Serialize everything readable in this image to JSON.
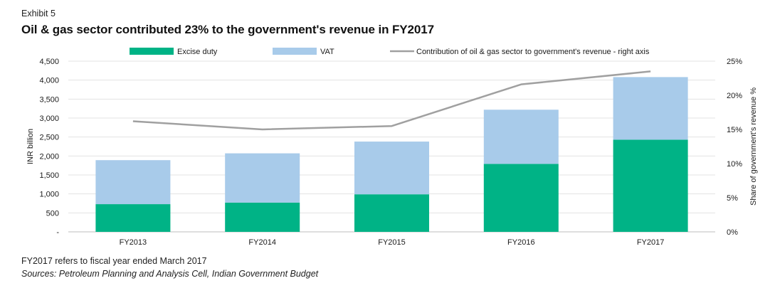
{
  "header": {
    "exhibit": "Exhibit 5",
    "title": "Oil & gas sector contributed 23% to the government's revenue in FY2017"
  },
  "footer": {
    "note": "FY2017 refers to fiscal year ended March 2017",
    "source": "Sources: Petroleum Planning and Analysis Cell, Indian Government Budget"
  },
  "chart_data": {
    "type": "bar",
    "stacked": true,
    "categories": [
      "FY2013",
      "FY2014",
      "FY2015",
      "FY2016",
      "FY2017"
    ],
    "series": [
      {
        "name": "Excise duty",
        "kind": "bar",
        "axis": "left",
        "color": "#00b386",
        "values": [
          730,
          770,
          990,
          1790,
          2430
        ]
      },
      {
        "name": "VAT",
        "kind": "bar",
        "axis": "left",
        "color": "#a8cbea",
        "values": [
          1160,
          1300,
          1390,
          1430,
          1650
        ]
      },
      {
        "name": "Contribution of oil & gas sector to government's revenue - right axis",
        "kind": "line",
        "axis": "right",
        "color": "#a0a0a0",
        "values": [
          16.2,
          15.0,
          15.5,
          21.6,
          23.5
        ]
      }
    ],
    "ylabel": "INR billion",
    "y2label": "Share of government's revenue %",
    "ylim": [
      0,
      4500
    ],
    "y2lim": [
      0,
      25
    ],
    "yticks": [
      "-",
      "500",
      "1,000",
      "1,500",
      "2,000",
      "2,500",
      "3,000",
      "3,500",
      "4,000",
      "4,500"
    ],
    "y2ticks": [
      "0%",
      "5%",
      "10%",
      "15%",
      "20%",
      "25%"
    ],
    "grid": true,
    "legend": "top"
  }
}
